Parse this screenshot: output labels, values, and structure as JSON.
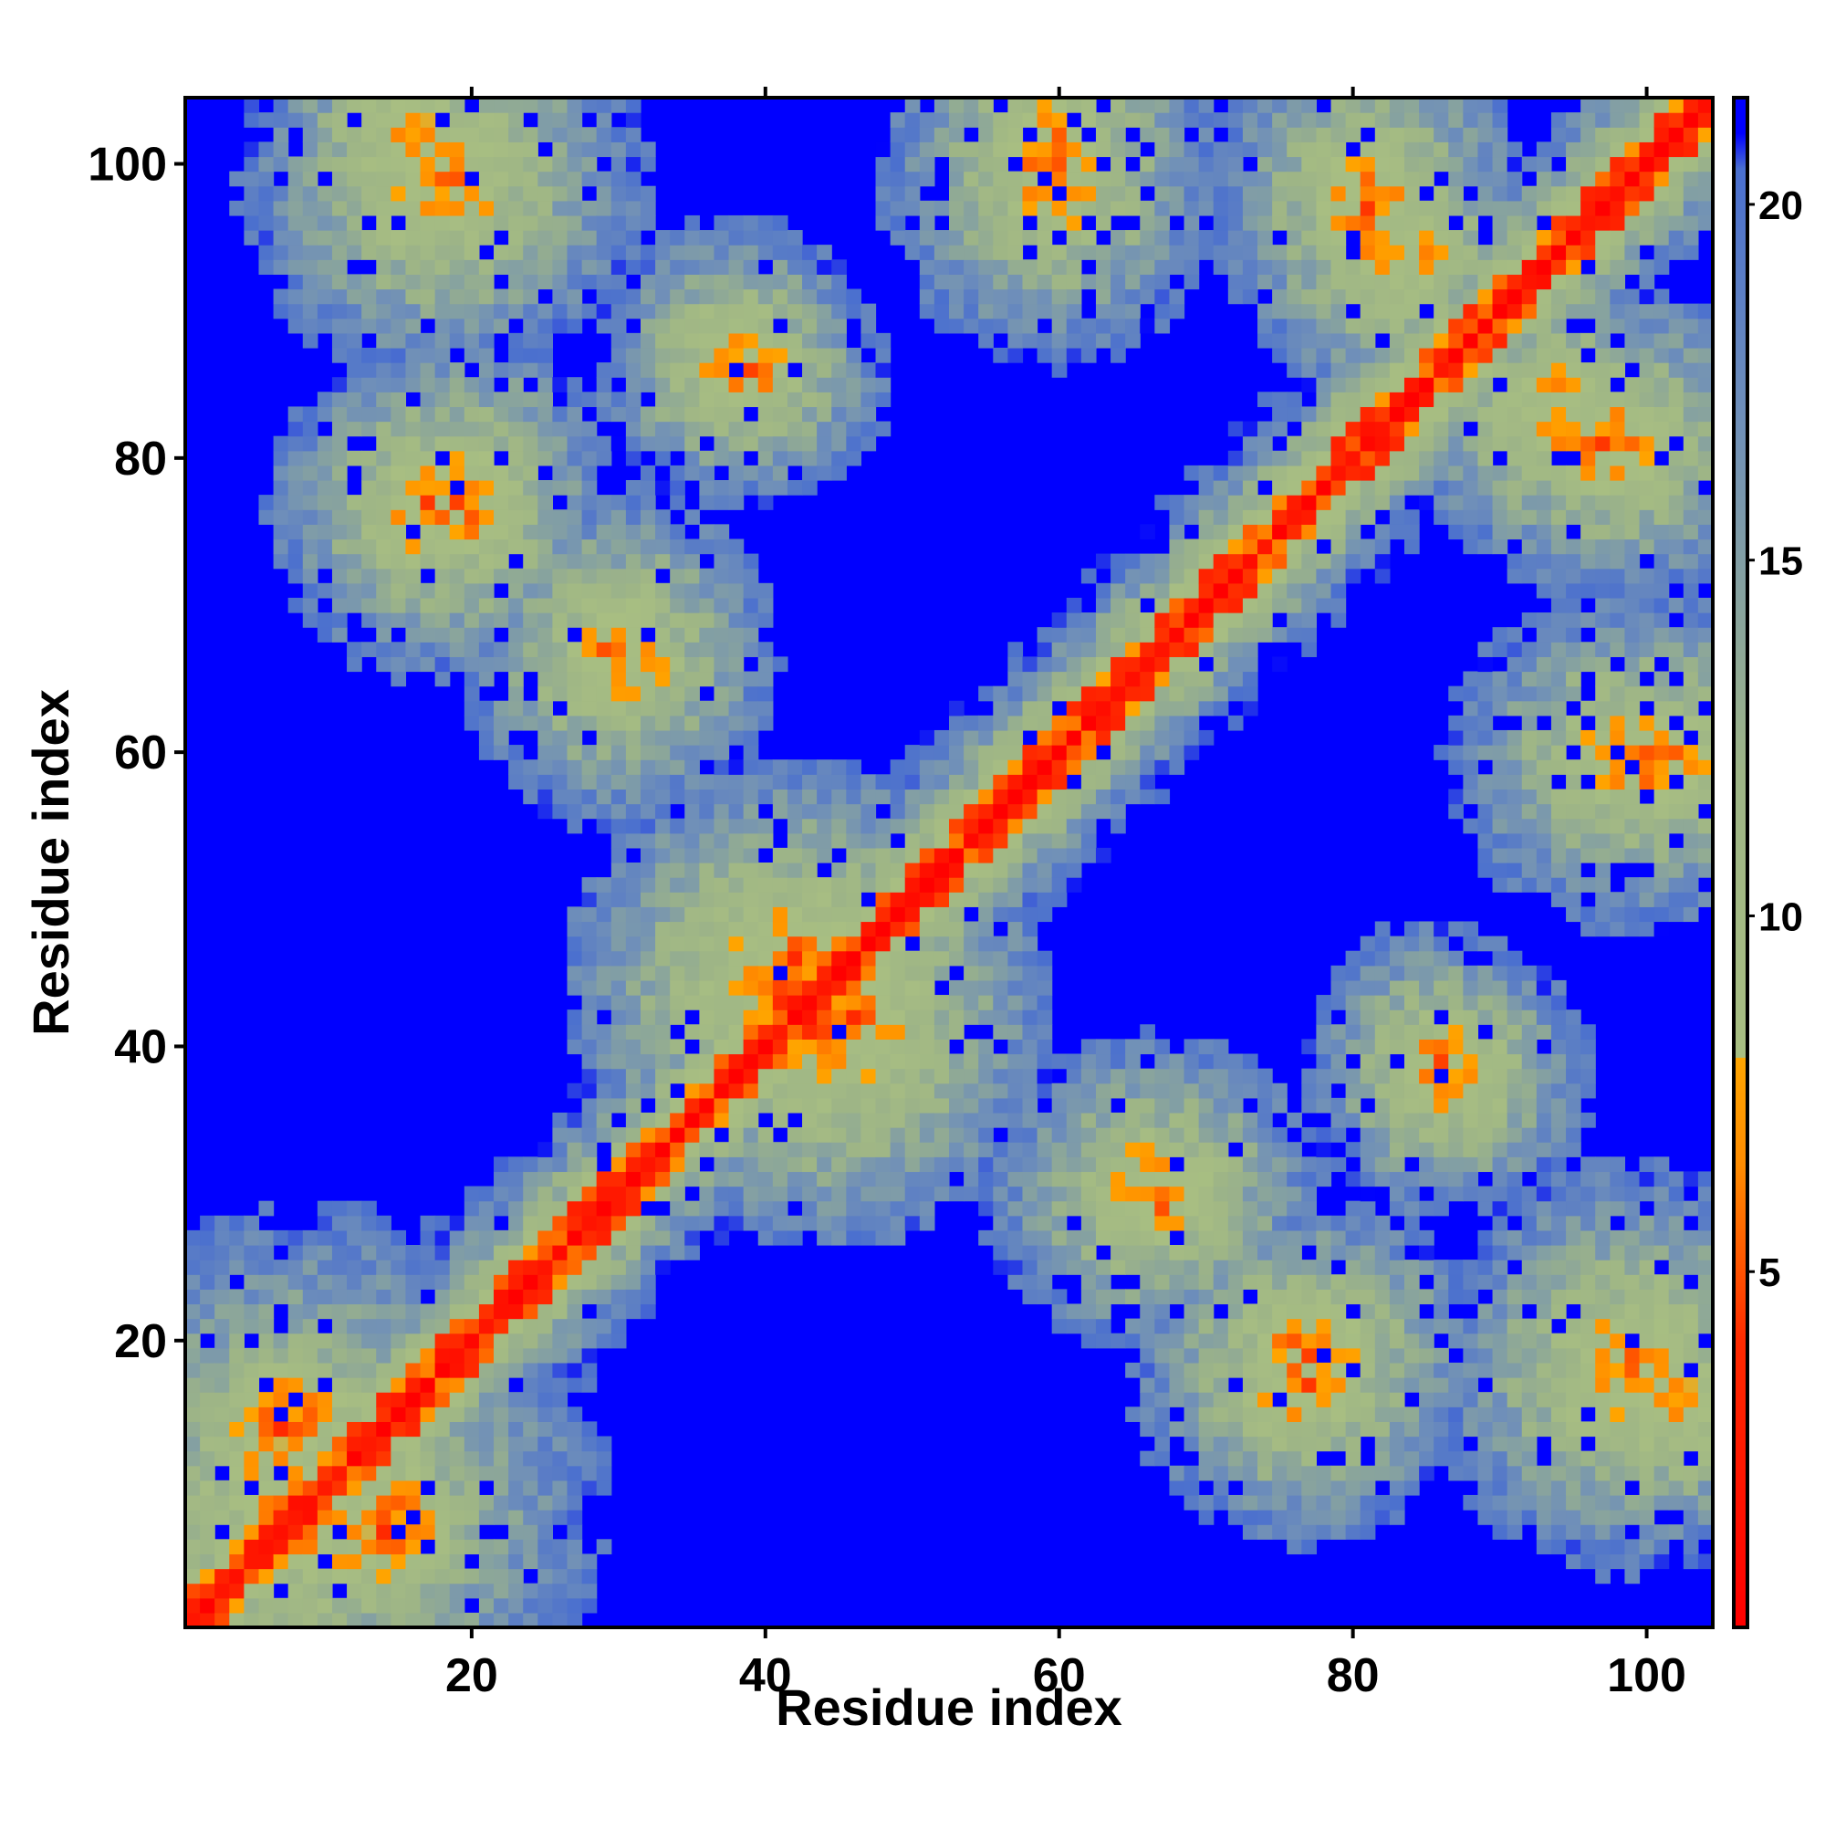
{
  "chart_data": {
    "type": "heatmap",
    "title": "",
    "xlabel": "Residue index",
    "ylabel": "Residue index",
    "n_residues": 104,
    "xlim": [
      1,
      104
    ],
    "ylim": [
      1,
      104
    ],
    "x_ticks": [
      20,
      40,
      60,
      80,
      100
    ],
    "y_ticks": [
      20,
      40,
      60,
      80,
      100
    ],
    "x_tick_labels": [
      "20",
      "40",
      "60",
      "80",
      "100"
    ],
    "y_tick_labels": [
      "20",
      "40",
      "60",
      "80",
      "100"
    ],
    "colorbar": {
      "range": [
        0,
        21.5
      ],
      "ticks": [
        5,
        10,
        15,
        20
      ],
      "tick_labels": [
        "5",
        "10",
        "15",
        "20"
      ],
      "stops": [
        {
          "value": 0,
          "color": "#FF0000"
        },
        {
          "value": 4.0,
          "color": "#FF2A00"
        },
        {
          "value": 6.5,
          "color": "#FF8C00"
        },
        {
          "value": 8.0,
          "color": "#FFA500"
        },
        {
          "value": 8.01,
          "color": "#A8BE82"
        },
        {
          "value": 12.0,
          "color": "#9EB586"
        },
        {
          "value": 17.0,
          "color": "#6F8FB9"
        },
        {
          "value": 20.5,
          "color": "#4A6FCF"
        },
        {
          "value": 21.0,
          "color": "#0000FF"
        },
        {
          "value": 21.5,
          "color": "#0000FF"
        }
      ]
    },
    "cutoff_value": 21,
    "contact_color": "#FF0000",
    "noncontact_color": "#0000FF",
    "symmetric": true,
    "contact_regions": [
      {
        "i": [
          1,
          18
        ],
        "j": [
          1,
          18
        ],
        "note": "diagonal band"
      },
      {
        "i": [
          5,
          10
        ],
        "j": [
          11,
          17
        ],
        "min_distance": 5
      },
      {
        "i": [
          11,
          17
        ],
        "j": [
          5,
          10
        ],
        "min_distance": 5
      },
      {
        "i": [
          13,
          23
        ],
        "j": [
          94,
          104
        ],
        "min_distance": 6
      },
      {
        "i": [
          17,
          22
        ],
        "j": [
          73,
          81
        ],
        "min_distance": 6
      },
      {
        "i": [
          27,
          33
        ],
        "j": [
          63,
          70
        ],
        "min_distance": 6
      },
      {
        "i": [
          36,
          48
        ],
        "j": [
          39,
          50
        ],
        "min_distance": 5
      },
      {
        "i": [
          36,
          40
        ],
        "j": [
          85,
          89
        ],
        "min_distance": 6
      },
      {
        "i": [
          56,
          63
        ],
        "j": [
          95,
          104
        ],
        "min_distance": 6
      },
      {
        "i": [
          78,
          84
        ],
        "j": [
          94,
          101
        ],
        "min_distance": 6
      },
      {
        "i": [
          84,
          87
        ],
        "j": [
          36,
          41
        ],
        "min_distance": 6
      },
      {
        "i": [
          91,
          97
        ],
        "j": [
          80,
          86
        ],
        "min_distance": 6
      },
      {
        "i": [
          98,
          104
        ],
        "j": [
          13,
          19
        ],
        "min_distance": 6
      },
      {
        "i": [
          98,
          104
        ],
        "j": [
          57,
          62
        ],
        "min_distance": 6
      },
      {
        "i": [
          73,
          80
        ],
        "j": [
          14,
          20
        ],
        "min_distance": 6
      },
      {
        "i": [
          63,
          70
        ],
        "j": [
          27,
          33
        ],
        "min_distance": 6
      }
    ]
  }
}
